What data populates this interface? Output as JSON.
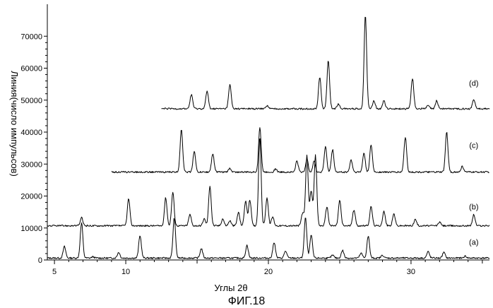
{
  "chart_data": {
    "type": "line",
    "xlabel": "Углы 2θ",
    "ylabel": "Линия(число импульсов)",
    "caption": "ФИГ.18",
    "xlim": [
      4.5,
      35.5
    ],
    "ylim": [
      0,
      80000
    ],
    "x_ticks": [
      5,
      10,
      20,
      30
    ],
    "y_ticks": [
      0,
      10000,
      20000,
      30000,
      40000,
      50000,
      60000,
      70000
    ],
    "series": [
      {
        "name": "(a)",
        "x_start": 4.5,
        "baseline": 600,
        "label_x": 34.4,
        "label_y": 4800,
        "peaks": [
          [
            5.7,
            3600
          ],
          [
            6.9,
            11000
          ],
          [
            7.7,
            400
          ],
          [
            9.5,
            1800
          ],
          [
            11.0,
            7000
          ],
          [
            13.4,
            12500
          ],
          [
            15.3,
            3000
          ],
          [
            18.5,
            4000
          ],
          [
            20.4,
            5000
          ],
          [
            21.2,
            2200
          ],
          [
            22.6,
            12600
          ],
          [
            23.0,
            7200
          ],
          [
            24.5,
            900
          ],
          [
            25.2,
            2400
          ],
          [
            26.5,
            1500
          ],
          [
            27.0,
            6800
          ],
          [
            28.0,
            900
          ],
          [
            31.2,
            2000
          ],
          [
            32.3,
            1800
          ],
          [
            33.8,
            600
          ]
        ]
      },
      {
        "name": "(b)",
        "x_start": 4.5,
        "baseline": 10700,
        "label_x": 34.4,
        "label_y": 15800,
        "peaks": [
          [
            6.9,
            2500
          ],
          [
            10.2,
            8500
          ],
          [
            12.8,
            8800
          ],
          [
            13.3,
            10500
          ],
          [
            14.5,
            3500
          ],
          [
            15.5,
            2200
          ],
          [
            15.9,
            12500
          ],
          [
            16.8,
            2200
          ],
          [
            17.3,
            1600
          ],
          [
            17.9,
            4200
          ],
          [
            18.4,
            7800
          ],
          [
            18.7,
            8000
          ],
          [
            19.4,
            28000
          ],
          [
            19.9,
            8800
          ],
          [
            20.3,
            2800
          ],
          [
            22.4,
            4000
          ],
          [
            22.7,
            22000
          ],
          [
            23.0,
            11000
          ],
          [
            23.3,
            22000
          ],
          [
            24.1,
            6000
          ],
          [
            25.0,
            8000
          ],
          [
            26.0,
            5000
          ],
          [
            27.2,
            6000
          ],
          [
            28.1,
            4500
          ],
          [
            28.8,
            3800
          ],
          [
            30.3,
            2000
          ],
          [
            32.0,
            1200
          ],
          [
            34.4,
            3500
          ]
        ]
      },
      {
        "name": "(c)",
        "x_start": 9.0,
        "baseline": 27500,
        "label_x": 34.4,
        "label_y": 35000,
        "peaks": [
          [
            13.9,
            13500
          ],
          [
            14.8,
            6500
          ],
          [
            16.1,
            5700
          ],
          [
            17.3,
            1200
          ],
          [
            19.4,
            14000
          ],
          [
            20.5,
            1000
          ],
          [
            22.0,
            3500
          ],
          [
            22.7,
            4000
          ],
          [
            23.2,
            3500
          ],
          [
            24.0,
            8000
          ],
          [
            24.5,
            7000
          ],
          [
            25.8,
            3800
          ],
          [
            26.7,
            6000
          ],
          [
            27.2,
            8500
          ],
          [
            29.6,
            11000
          ],
          [
            32.5,
            12500
          ],
          [
            33.6,
            1800
          ]
        ]
      },
      {
        "name": "(d)",
        "x_start": 12.5,
        "baseline": 47300,
        "label_x": 34.4,
        "label_y": 54500,
        "peaks": [
          [
            14.6,
            4500
          ],
          [
            15.7,
            5500
          ],
          [
            17.3,
            7500
          ],
          [
            19.9,
            1000
          ],
          [
            23.6,
            10000
          ],
          [
            24.2,
            15000
          ],
          [
            24.9,
            1500
          ],
          [
            26.8,
            29500
          ],
          [
            27.4,
            2500
          ],
          [
            28.1,
            2500
          ],
          [
            30.1,
            9500
          ],
          [
            31.2,
            1000
          ],
          [
            31.8,
            2500
          ],
          [
            34.4,
            3000
          ]
        ]
      }
    ]
  }
}
